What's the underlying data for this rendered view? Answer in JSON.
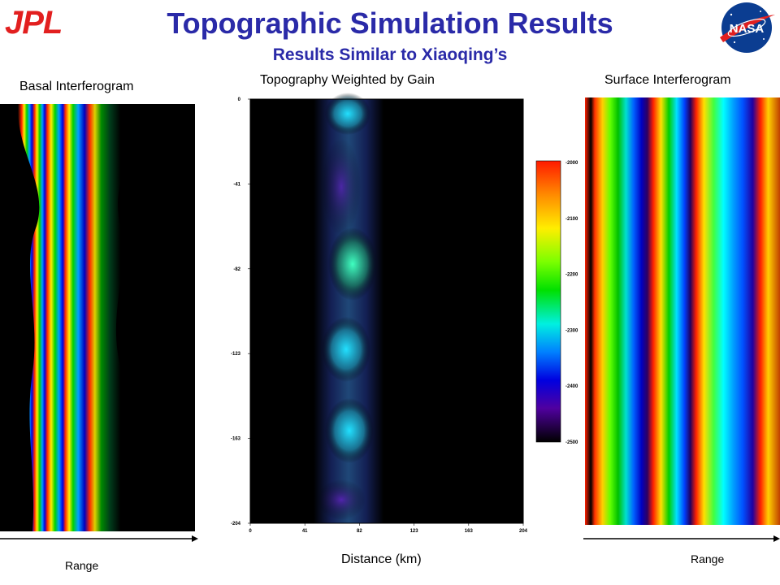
{
  "header": {
    "logo_left": "JPL",
    "logo_right": "NASA",
    "title": "Topographic Simulation Results",
    "subtitle": "Results Similar to Xiaoqing’s"
  },
  "panels": {
    "basal": {
      "label": "Basal Interferogram",
      "arrow_label": "Range"
    },
    "center": {
      "label": "Topography Weighted by Gain",
      "xlabel": "Distance (km)"
    },
    "surface": {
      "label": "Surface Interferogram",
      "arrow_label": "Range"
    }
  },
  "chart_data": {
    "type": "heatmap",
    "title": "Topography Weighted by Gain",
    "xlabel": "Distance (km)",
    "ylabel": "",
    "x_ticks": [
      "0",
      "41",
      "82",
      "123",
      "163",
      "204"
    ],
    "y_ticks": [
      "0",
      "-41",
      "-82",
      "-123",
      "-163",
      "-204"
    ],
    "xlim": [
      0,
      204
    ],
    "ylim": [
      -204,
      0
    ],
    "colorbar": {
      "ticks": [
        "-2000",
        "-2100",
        "-2200",
        "-2300",
        "-2400",
        "-2500"
      ],
      "range": [
        -2500,
        -2000
      ],
      "colormap": "jet"
    }
  }
}
